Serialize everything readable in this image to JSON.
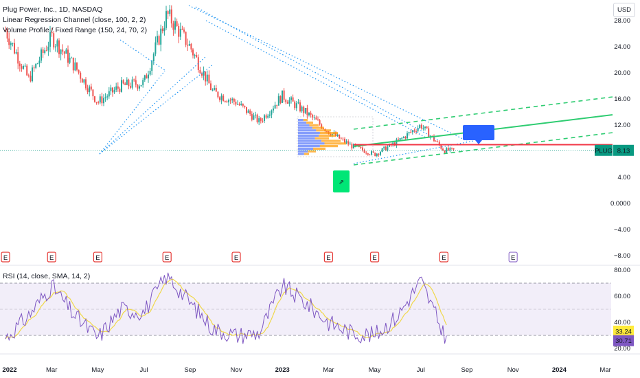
{
  "legend": {
    "symbol": "Plug Power, Inc., 1D, NASDAQ",
    "indicator_1": "Linear Regression Channel (close, 100, 2, 2)",
    "indicator_2": "Volume Profile / Fixed Range (150, 24, 70, 2)",
    "rsi": "RSI (14, close, SMA, 14, 2)"
  },
  "currency_button": "USD",
  "price_tag": {
    "symbol": "PLUG",
    "value": "8.13"
  },
  "rsi_tags": {
    "rsi_ma": "33.24",
    "rsi": "30.71"
  },
  "earnings_marker": "E",
  "colors": {
    "up": "#26a69a",
    "down": "#ef5350",
    "regression": "#2ecc71",
    "trendline": "#2196f3",
    "support": "#f23645",
    "rsi_line": "#7e57c2",
    "rsi_ma": "#f0d84a",
    "rsi_band": "#ede7f6",
    "volume_up": "#5c7cfa",
    "volume_down": "#ff9800",
    "price_tag_bg": "#089981"
  },
  "chart_data": [
    {
      "type": "candlestick",
      "title": "Plug Power, Inc., 1D, NASDAQ",
      "x_ticks": [
        "2022",
        "Mar",
        "May",
        "Jul",
        "Sep",
        "Nov",
        "2023",
        "Mar",
        "May",
        "Jul",
        "Sep",
        "Nov",
        "2024",
        "Mar"
      ],
      "y_ticks": [
        28.0,
        24.0,
        20.0,
        16.0,
        12.0,
        8.0,
        4.0,
        0.0,
        -4.0,
        -8.0
      ],
      "ylim": [
        -9,
        31
      ],
      "series": [
        {
          "name": "PLUG",
          "approx_close": [
            {
              "x": "2022-01",
              "y": 26.5
            },
            {
              "x": "2022-02",
              "y": 19.0
            },
            {
              "x": "2022-03",
              "y": 25.5
            },
            {
              "x": "2022-04",
              "y": 21.0
            },
            {
              "x": "2022-05",
              "y": 15.5
            },
            {
              "x": "2022-06",
              "y": 18.0
            },
            {
              "x": "2022-07",
              "y": 18.5
            },
            {
              "x": "2022-08",
              "y": 29.0
            },
            {
              "x": "2022-09",
              "y": 24.0
            },
            {
              "x": "2022-10",
              "y": 17.0
            },
            {
              "x": "2022-11",
              "y": 15.5
            },
            {
              "x": "2022-12",
              "y": 12.5
            },
            {
              "x": "2023-01",
              "y": 16.5
            },
            {
              "x": "2023-02",
              "y": 14.0
            },
            {
              "x": "2023-03",
              "y": 11.0
            },
            {
              "x": "2023-04",
              "y": 8.8
            },
            {
              "x": "2023-05",
              "y": 7.5
            },
            {
              "x": "2023-06",
              "y": 9.5
            },
            {
              "x": "2023-07",
              "y": 12.0
            },
            {
              "x": "2023-08",
              "y": 8.13
            }
          ]
        }
      ],
      "last_price": 8.13,
      "support_level": 9.0,
      "earnings_dates": [
        "2022-01",
        "2022-03",
        "2022-05",
        "2022-08",
        "2022-11",
        "2023-03",
        "2023-05",
        "2023-08",
        "2023-11"
      ]
    },
    {
      "type": "line",
      "title": "RSI (14, close, SMA, 14, 2)",
      "y_ticks": [
        80.0,
        60.0,
        40.0,
        20.0
      ],
      "ylim": [
        18,
        82
      ],
      "band": [
        30,
        70
      ],
      "series": [
        {
          "name": "RSI",
          "approx_values": [
            {
              "x": "2022-01",
              "y": 28
            },
            {
              "x": "2022-02",
              "y": 45
            },
            {
              "x": "2022-03",
              "y": 68
            },
            {
              "x": "2022-04",
              "y": 45
            },
            {
              "x": "2022-05",
              "y": 28
            },
            {
              "x": "2022-06",
              "y": 50
            },
            {
              "x": "2022-07",
              "y": 48
            },
            {
              "x": "2022-08",
              "y": 76
            },
            {
              "x": "2022-09",
              "y": 55
            },
            {
              "x": "2022-10",
              "y": 35
            },
            {
              "x": "2022-11",
              "y": 30
            },
            {
              "x": "2022-12",
              "y": 32
            },
            {
              "x": "2023-01",
              "y": 68
            },
            {
              "x": "2023-02",
              "y": 55
            },
            {
              "x": "2023-03",
              "y": 40
            },
            {
              "x": "2023-04",
              "y": 32
            },
            {
              "x": "2023-05",
              "y": 30
            },
            {
              "x": "2023-06",
              "y": 45
            },
            {
              "x": "2023-07",
              "y": 72
            },
            {
              "x": "2023-08",
              "y": 30.71
            }
          ]
        },
        {
          "name": "RSI-based MA",
          "last": 33.24
        }
      ],
      "last_values": {
        "rsi": 30.71,
        "rsi_ma": 33.24
      }
    }
  ]
}
